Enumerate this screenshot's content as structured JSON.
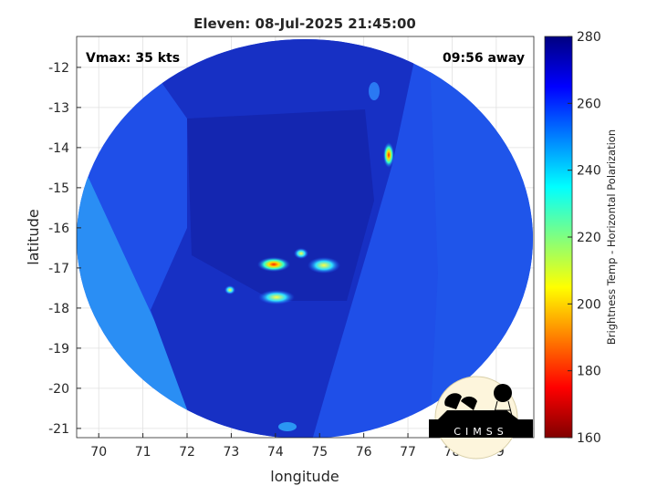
{
  "chart_data": {
    "type": "heatmap",
    "title": "Eleven: 08-Jul-2025 21:45:00",
    "xlabel": "longitude",
    "ylabel": "latitude",
    "xlim": [
      69.5,
      79.85
    ],
    "ylim": [
      -21.23,
      -11.23
    ],
    "xticks": [
      70,
      71,
      72,
      73,
      74,
      75,
      76,
      77,
      78,
      79
    ],
    "yticks": [
      -12,
      -13,
      -14,
      -15,
      -16,
      -17,
      -18,
      -19,
      -20,
      -21
    ],
    "grid": true,
    "colorbar": {
      "label": "Brightness Temp - Horizontal Polarization",
      "range": [
        160,
        280
      ],
      "ticks": [
        160,
        180,
        200,
        220,
        240,
        260,
        280
      ],
      "colormap": "jet"
    },
    "annotations": {
      "left": "Vmax: 35 kts",
      "right": "09:56 away"
    },
    "cold_features": [
      {
        "lon": 74.2,
        "lat": -16.9,
        "value": 185
      },
      {
        "lon": 75.1,
        "lat": -16.9,
        "value": 205
      },
      {
        "lon": 73.9,
        "lat": -17.7,
        "value": 200
      },
      {
        "lon": 74.6,
        "lat": -16.6,
        "value": 215
      },
      {
        "lon": 76.6,
        "lat": -14.2,
        "value": 190
      }
    ]
  },
  "logo": {
    "text": "CIMSS"
  }
}
